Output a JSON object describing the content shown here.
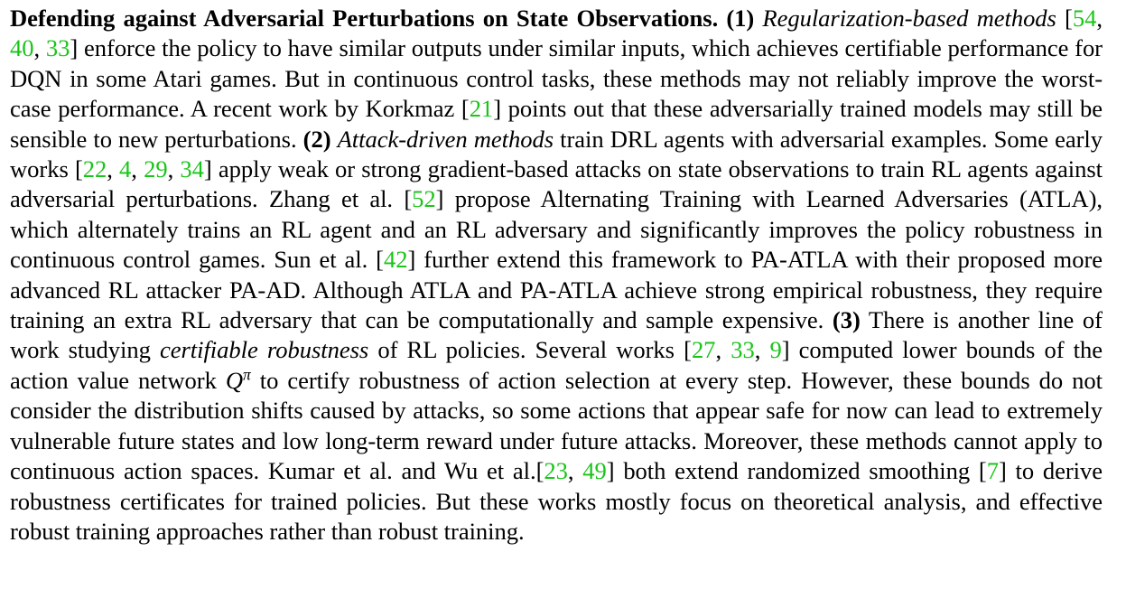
{
  "heading": "Defending against Adversarial Perturbations on State Observations.",
  "marker1": "(1)",
  "term1": "Regularization-based methods",
  "t1": "[",
  "c1": [
    "54",
    "40",
    "33"
  ],
  "t2": "] enforce the policy to have similar outputs under similar inputs, which achieves certifiable performance for DQN in some Atari games. But in continuous control tasks, these methods may not reliably improve the worst-case performance. A recent work by Korkmaz [",
  "c2": "21",
  "t3": "] points out that these adversarially trained models may still be sensible to new perturbations.",
  "marker2": "(2)",
  "term2": "Attack-driven methods",
  "t4": "train DRL agents with adversarial examples. Some early works [",
  "c3": [
    "22",
    "4",
    "29",
    "34"
  ],
  "t5": "] apply weak or strong gradient-based attacks on state observations to train RL agents against adversarial perturbations. Zhang et al. [",
  "c4": "52",
  "t6": "] propose Alternating Training with Learned Adversaries (ATLA), which alternately trains an RL agent and an RL adversary and significantly improves the policy robustness in continuous control games. Sun et al. [",
  "c5": "42",
  "t7": "] further extend this framework to PA-ATLA with their proposed more advanced RL attacker PA-AD. Although ATLA and PA-ATLA achieve strong empirical robustness, they require training an extra RL adversary that can be computationally and sample expensive.",
  "marker3": "(3)",
  "t8": "There is another line of work studying",
  "term3": "certifiable robustness",
  "t9": "of RL policies. Several works [",
  "c6": [
    "27",
    "33",
    "9"
  ],
  "t10": "] computed lower bounds of the action value network",
  "math_q": "Q",
  "math_pi": "π",
  "t11": "to certify robustness of action selection at every step. However, these bounds do not consider the distribution shifts caused by attacks, so some actions that appear safe for now can lead to extremely vulnerable future states and low long-term reward under future attacks. Moreover, these methods cannot apply to continuous action spaces. Kumar et al. and Wu et al.[",
  "c7": [
    "23",
    "49"
  ],
  "t12": "] both extend randomized smoothing [",
  "c8": "7",
  "t13": "] to derive robustness certificates for trained policies. But these works mostly focus on theoretical analysis, and effective robust training approaches rather than robust training.",
  "sep": ", ",
  "space": " ",
  "colors": {
    "citation": "#19c519",
    "text": "#000000"
  }
}
